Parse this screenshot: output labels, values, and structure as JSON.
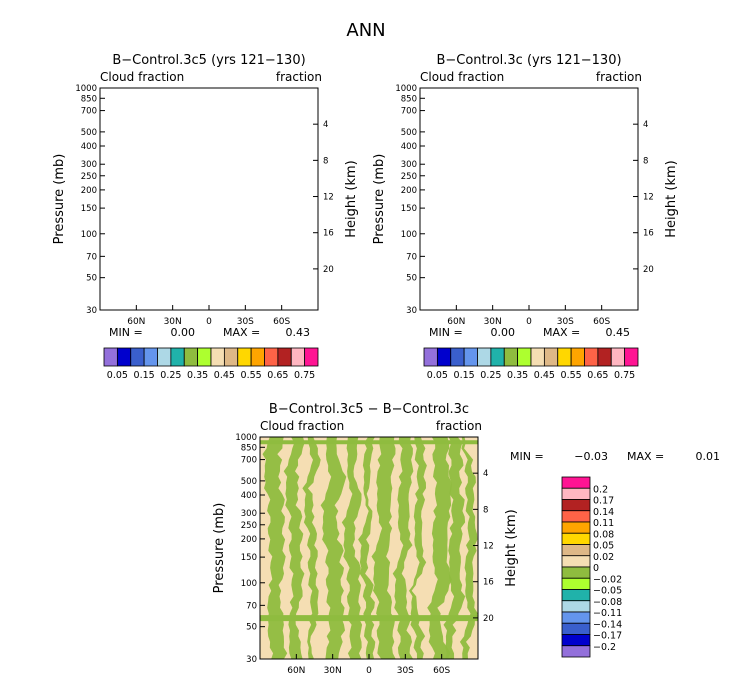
{
  "figure_title": "ANN",
  "chart_data": [
    {
      "type": "contour",
      "id": "left",
      "title": "B−Control.3c5 (yrs 121−130)",
      "subtitle_left": "Cloud fraction",
      "subtitle_right": "fraction",
      "xlabel": "",
      "ylabel": "Pressure (mb)",
      "ylabel_right": "Height (km)",
      "x_range": [
        90,
        -90
      ],
      "x_ticks": [
        60,
        30,
        0,
        -30,
        -60
      ],
      "x_tick_labels": [
        "60N",
        "30N",
        "0",
        "30S",
        "60S"
      ],
      "pressure_range": [
        1000,
        30
      ],
      "pressure_ticks": [
        30,
        50,
        70,
        100,
        150,
        200,
        250,
        300,
        400,
        500,
        700,
        850,
        1000
      ],
      "pressure_tick_labels": [
        "30",
        "50",
        "70",
        "100",
        "150",
        "200",
        "250",
        "300",
        "400",
        "500",
        "700",
        "850",
        "1000"
      ],
      "height_ticks": [
        4,
        8,
        12,
        16,
        20
      ],
      "height_tick_labels": [
        "4",
        "8",
        "12",
        "16",
        "20"
      ],
      "min_label": "MIN =",
      "min_value": "0.00",
      "max_label": "MAX =",
      "max_value": "0.43",
      "contour_levels": [
        0.05,
        0.1,
        0.15,
        0.2,
        0.25,
        0.3,
        0.35,
        0.4,
        0.45,
        0.5,
        0.55,
        0.6,
        0.65,
        0.7,
        0.75
      ],
      "colorbar_labels": [
        "0.05",
        "0.15",
        "0.25",
        "0.35",
        "0.45",
        "0.55",
        "0.65",
        "0.75"
      ],
      "colors": [
        "#9370db",
        "#0000cd",
        "#3a5fcd",
        "#6495ed",
        "#add8e6",
        "#20b2aa",
        "#8fbc3f",
        "#adff2f",
        "#f5deb3",
        "#deb887",
        "#ffd700",
        "#ffa500",
        "#ff6347",
        "#b22222",
        "#ffb6c1",
        "#ff1493"
      ]
    },
    {
      "type": "contour",
      "id": "right",
      "title": "B−Control.3c (yrs 121−130)",
      "subtitle_left": "Cloud fraction",
      "subtitle_right": "fraction",
      "xlabel": "",
      "ylabel": "Pressure (mb)",
      "ylabel_right": "Height (km)",
      "x_range": [
        90,
        -90
      ],
      "x_ticks": [
        60,
        30,
        0,
        -30,
        -60
      ],
      "x_tick_labels": [
        "60N",
        "30N",
        "0",
        "30S",
        "60S"
      ],
      "pressure_range": [
        1000,
        30
      ],
      "pressure_ticks": [
        30,
        50,
        70,
        100,
        150,
        200,
        250,
        300,
        400,
        500,
        700,
        850,
        1000
      ],
      "pressure_tick_labels": [
        "30",
        "50",
        "70",
        "100",
        "150",
        "200",
        "250",
        "300",
        "400",
        "500",
        "700",
        "850",
        "1000"
      ],
      "height_ticks": [
        4,
        8,
        12,
        16,
        20
      ],
      "height_tick_labels": [
        "4",
        "8",
        "12",
        "16",
        "20"
      ],
      "min_label": "MIN =",
      "min_value": "0.00",
      "max_label": "MAX =",
      "max_value": "0.45",
      "contour_levels": [
        0.05,
        0.1,
        0.15,
        0.2,
        0.25,
        0.3,
        0.35,
        0.4,
        0.45,
        0.5,
        0.55,
        0.6,
        0.65,
        0.7,
        0.75
      ],
      "colorbar_labels": [
        "0.05",
        "0.15",
        "0.25",
        "0.35",
        "0.45",
        "0.55",
        "0.65",
        "0.75"
      ],
      "colors": [
        "#9370db",
        "#0000cd",
        "#3a5fcd",
        "#6495ed",
        "#add8e6",
        "#20b2aa",
        "#8fbc3f",
        "#adff2f",
        "#f5deb3",
        "#deb887",
        "#ffd700",
        "#ffa500",
        "#ff6347",
        "#b22222",
        "#ffb6c1",
        "#ff1493"
      ]
    },
    {
      "type": "contour",
      "id": "diff",
      "title": "B−Control.3c5 − B−Control.3c",
      "subtitle_left": "Cloud fraction",
      "subtitle_right": "fraction",
      "xlabel": "",
      "ylabel": "Pressure (mb)",
      "ylabel_right": "Height (km)",
      "x_range": [
        90,
        -90
      ],
      "x_ticks": [
        60,
        30,
        0,
        -30,
        -60
      ],
      "x_tick_labels": [
        "60N",
        "30N",
        "0",
        "30S",
        "60S"
      ],
      "pressure_range": [
        1000,
        30
      ],
      "pressure_ticks": [
        30,
        50,
        70,
        100,
        150,
        200,
        250,
        300,
        400,
        500,
        700,
        850,
        1000
      ],
      "pressure_tick_labels": [
        "30",
        "50",
        "70",
        "100",
        "150",
        "200",
        "250",
        "300",
        "400",
        "500",
        "700",
        "850",
        "1000"
      ],
      "height_ticks": [
        4,
        8,
        12,
        16,
        20
      ],
      "height_tick_labels": [
        "4",
        "8",
        "12",
        "16",
        "20"
      ],
      "min_label": "MIN =",
      "min_value": "−0.03",
      "max_label": "MAX =",
      "max_value": "0.01",
      "contour_levels": [
        -0.2,
        -0.17,
        -0.14,
        -0.11,
        -0.08,
        -0.05,
        -0.02,
        0,
        0.02,
        0.05,
        0.08,
        0.11,
        0.14,
        0.17,
        0.2
      ],
      "colorbar_labels": [
        "0.2",
        "0.17",
        "0.14",
        "0.11",
        "0.08",
        "0.05",
        "0.02",
        "0",
        "−0.02",
        "−0.05",
        "−0.08",
        "−0.11",
        "−0.14",
        "−0.17",
        "−0.2"
      ],
      "colors": [
        "#ff1493",
        "#ffb6c1",
        "#b22222",
        "#ff6347",
        "#ffa500",
        "#ffd700",
        "#deb887",
        "#f5deb3",
        "#8fbc3f",
        "#adff2f",
        "#20b2aa",
        "#add8e6",
        "#6495ed",
        "#3a5fcd",
        "#0000cd",
        "#9370db"
      ]
    }
  ]
}
